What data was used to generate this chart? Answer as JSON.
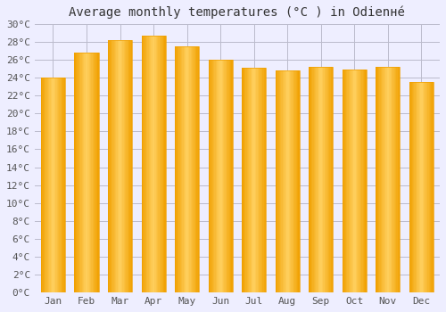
{
  "title": "Average monthly temperatures (°C ) in Odienнé",
  "months": [
    "Jan",
    "Feb",
    "Mar",
    "Apr",
    "May",
    "Jun",
    "Jul",
    "Aug",
    "Sep",
    "Oct",
    "Nov",
    "Dec"
  ],
  "values": [
    24.0,
    26.8,
    28.2,
    28.7,
    27.5,
    26.0,
    25.1,
    24.8,
    25.2,
    24.9,
    25.2,
    23.5
  ],
  "bar_color_center": "#FFD060",
  "bar_color_edge": "#F0A000",
  "background_color": "#EEEEFF",
  "grid_color": "#BBBBCC",
  "ylim": [
    0,
    30
  ],
  "ytick_step": 2,
  "title_fontsize": 10,
  "tick_fontsize": 8,
  "font_family": "monospace"
}
